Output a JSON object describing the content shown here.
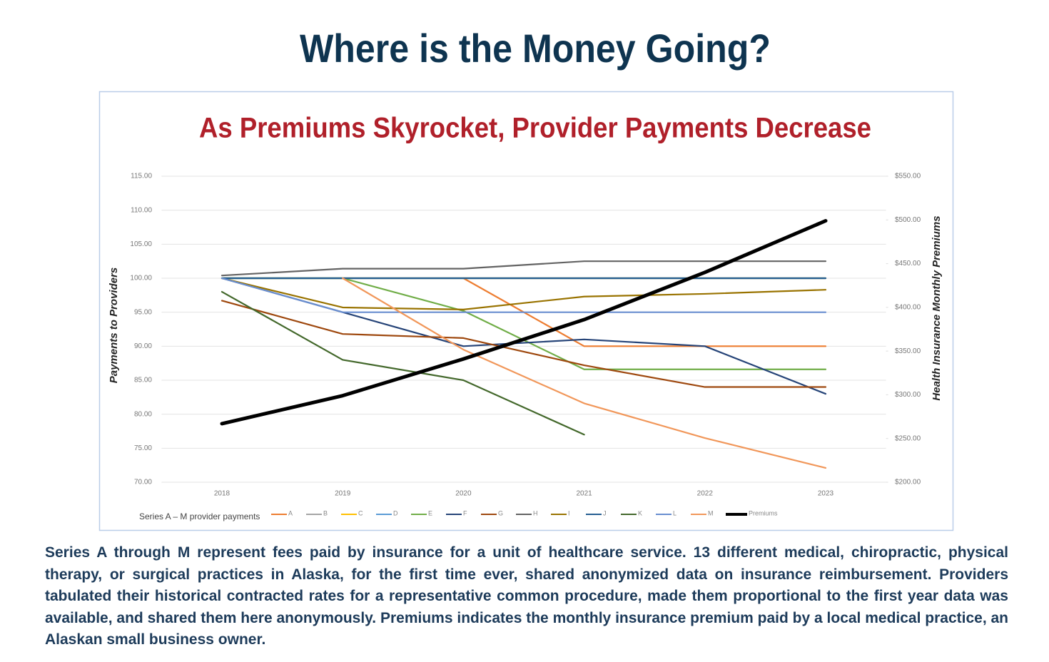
{
  "title": "Where is the Money Going?",
  "chart_data": {
    "type": "line",
    "title": "As Premiums Skyrocket, Provider Payments Decrease",
    "y_label": "Payments to Providers",
    "y2_label": "Health Insurance Monthly Premiums",
    "legend_title": "Series A – M provider payments",
    "legend_position": "bottom",
    "grid": true,
    "categories": [
      "2018",
      "2019",
      "2020",
      "2021",
      "2022",
      "2023"
    ],
    "ylim": [
      70,
      115
    ],
    "yticks": [
      {
        "value": 70,
        "label": "70.00"
      },
      {
        "value": 75,
        "label": "75.00"
      },
      {
        "value": 80,
        "label": "80.00"
      },
      {
        "value": 85,
        "label": "85.00"
      },
      {
        "value": 90,
        "label": "90.00"
      },
      {
        "value": 95,
        "label": "95.00"
      },
      {
        "value": 100,
        "label": "100.00"
      },
      {
        "value": 105,
        "label": "105.00"
      },
      {
        "value": 110,
        "label": "110.00"
      },
      {
        "value": 115,
        "label": "115.00"
      }
    ],
    "y2lim": [
      200,
      550
    ],
    "y2ticks": [
      {
        "value": 200,
        "label": "$200.00"
      },
      {
        "value": 250,
        "label": "$250.00"
      },
      {
        "value": 300,
        "label": "$300.00"
      },
      {
        "value": 350,
        "label": "$350.00"
      },
      {
        "value": 400,
        "label": "$400.00"
      },
      {
        "value": 450,
        "label": "$450.00"
      },
      {
        "value": 500,
        "label": "$500.00"
      },
      {
        "value": 550,
        "label": "$550.00"
      }
    ],
    "series": [
      {
        "name": "A",
        "color": "#ed7d31",
        "values": [
          null,
          null,
          100,
          90,
          90,
          90
        ]
      },
      {
        "name": "B",
        "color": "#a5a5a5",
        "values": [
          100,
          100,
          100,
          100,
          100,
          100
        ]
      },
      {
        "name": "C",
        "color": "#ffc000",
        "values": [
          100,
          100,
          100,
          100,
          100,
          100
        ]
      },
      {
        "name": "D",
        "color": "#5b9bd5",
        "values": [
          100,
          100,
          100,
          100,
          100,
          100
        ]
      },
      {
        "name": "E",
        "color": "#70ad47",
        "values": [
          100,
          100,
          95.2,
          86.6,
          86.6,
          86.6
        ]
      },
      {
        "name": "F",
        "color": "#264478",
        "values": [
          100,
          95,
          90,
          91,
          90,
          83
        ]
      },
      {
        "name": "G",
        "color": "#9e480e",
        "values": [
          96.7,
          91.8,
          91.2,
          87.2,
          84,
          84
        ]
      },
      {
        "name": "H",
        "color": "#636363",
        "values": [
          100.4,
          101.4,
          101.4,
          102.5,
          102.5,
          102.5
        ]
      },
      {
        "name": "I",
        "color": "#997300",
        "values": [
          100,
          95.7,
          95.4,
          97.3,
          97.7,
          98.3
        ]
      },
      {
        "name": "J",
        "color": "#255e91",
        "values": [
          100,
          100,
          100,
          100,
          100,
          100
        ]
      },
      {
        "name": "K",
        "color": "#43682b",
        "values": [
          98,
          88,
          85,
          77,
          null,
          null
        ]
      },
      {
        "name": "L",
        "color": "#698ed0",
        "values": [
          100,
          95,
          95,
          95,
          95,
          95
        ]
      },
      {
        "name": "M",
        "color": "#f1975a",
        "values": [
          null,
          100,
          89.5,
          81.6,
          76.5,
          72.1
        ]
      },
      {
        "name": "Premiums",
        "color": "#000000",
        "axis": "y2",
        "values": [
          267,
          299,
          341,
          386,
          440,
          499
        ]
      }
    ]
  },
  "description": "Series A through M represent fees paid by insurance for a unit of healthcare service. 13 different medical, chiropractic, physical therapy, or surgical practices in Alaska, for the first time ever, shared anonymized data on insurance reimbursement. Providers tabulated their historical contracted rates for a representative common procedure, made them proportional to the first year data was available, and shared them here anonymously. Premiums indicates the monthly insurance premium paid by a local medical practice, an Alaskan small business owner."
}
